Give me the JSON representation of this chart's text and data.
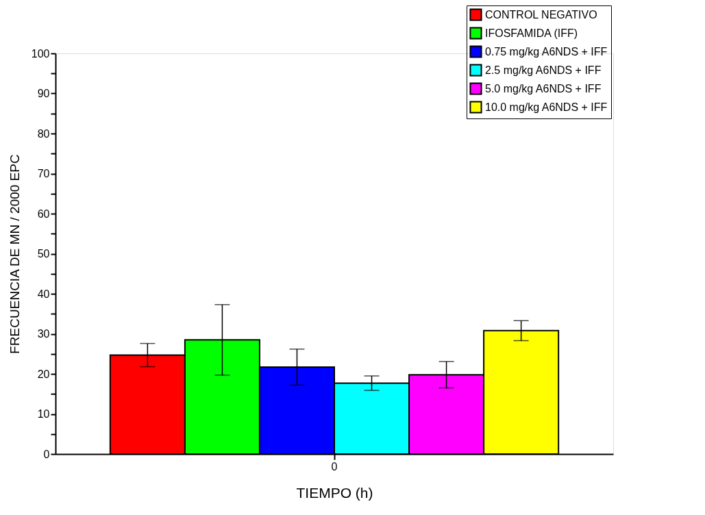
{
  "chart_data": {
    "type": "bar",
    "categories": [
      "0"
    ],
    "xlabel": "TIEMPO (h)",
    "ylabel": "FRECUENCIA DE MN / 2000 EPC",
    "series": [
      {
        "name": "CONTROL NEGATIVO",
        "color": "#ff0000",
        "values": [
          24.7
        ],
        "errors": [
          2.9
        ]
      },
      {
        "name": "IFOSFAMIDA (IFF)",
        "color": "#00ff00",
        "values": [
          28.5
        ],
        "errors": [
          8.8
        ]
      },
      {
        "name": "0.75 mg/kg A6NDS + IFF",
        "color": "#0000ff",
        "values": [
          21.7
        ],
        "errors": [
          4.5
        ]
      },
      {
        "name": "2.5 mg/kg A6NDS + IFF",
        "color": "#00ffff",
        "values": [
          17.7
        ],
        "errors": [
          1.8
        ]
      },
      {
        "name": "5.0 mg/kg A6NDS + IFF",
        "color": "#ff00ff",
        "values": [
          19.8
        ],
        "errors": [
          3.3
        ]
      },
      {
        "name": "10.0 mg/kg A6NDS + IFF",
        "color": "#ffff00",
        "values": [
          30.8
        ],
        "errors": [
          2.5
        ]
      }
    ],
    "ylim": [
      0,
      100
    ],
    "yticks": [
      0,
      {
        "value": 5,
        "label": null
      },
      10,
      {
        "value": 15,
        "label": null
      },
      20,
      {
        "value": 25,
        "label": null
      },
      30,
      {
        "value": 35,
        "label": null
      },
      40,
      {
        "value": 45,
        "label": null
      },
      50,
      {
        "value": 55,
        "label": null
      },
      60,
      {
        "value": 65,
        "label": null
      },
      70,
      {
        "value": 75,
        "label": null
      },
      80,
      {
        "value": 85,
        "label": null
      },
      90,
      {
        "value": 95,
        "label": null
      },
      100
    ],
    "grid": false,
    "legend": "top right"
  }
}
